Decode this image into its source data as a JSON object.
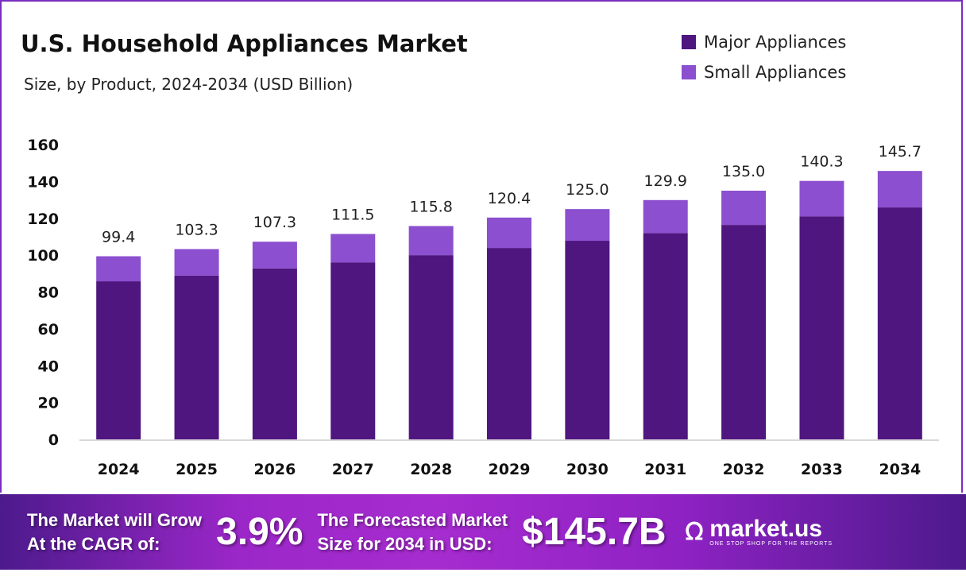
{
  "chart_data": {
    "type": "bar",
    "stacked": true,
    "title": "U.S. Household Appliances Market",
    "subtitle": "Size, by Product, 2024-2034 (USD Billion)",
    "categories": [
      "2024",
      "2025",
      "2026",
      "2027",
      "2028",
      "2029",
      "2030",
      "2031",
      "2032",
      "2033",
      "2034"
    ],
    "series": [
      {
        "name": "Major Appliances",
        "color": "#4f1680",
        "values": [
          85.8,
          88.9,
          92.8,
          96.1,
          100.0,
          103.9,
          107.8,
          112.0,
          116.4,
          121.1,
          125.9
        ]
      },
      {
        "name": "Small Appliances",
        "color": "#8b4fcf",
        "values": [
          13.6,
          14.4,
          14.5,
          15.4,
          15.8,
          16.5,
          17.2,
          17.9,
          18.6,
          19.2,
          19.8
        ]
      }
    ],
    "totals": [
      "99.4",
      "103.3",
      "107.3",
      "111.5",
      "115.8",
      "120.4",
      "125.0",
      "129.9",
      "135.0",
      "140.3",
      "145.7"
    ],
    "yticks": [
      "0",
      "20",
      "40",
      "60",
      "80",
      "100",
      "120",
      "140",
      "160"
    ],
    "ylim": [
      0,
      160
    ],
    "grid": false,
    "legend": "top-right"
  },
  "banner": {
    "cagr_text_1": "The Market will Grow",
    "cagr_text_2": "At the CAGR of:",
    "cagr_value": "3.9%",
    "forecast_text_1": "The Forecasted Market",
    "forecast_text_2": "Size for 2034 in USD:",
    "forecast_value": "$145.7B",
    "logo_name": "market.us",
    "logo_tagline": "ONE STOP SHOP FOR THE REPORTS"
  }
}
